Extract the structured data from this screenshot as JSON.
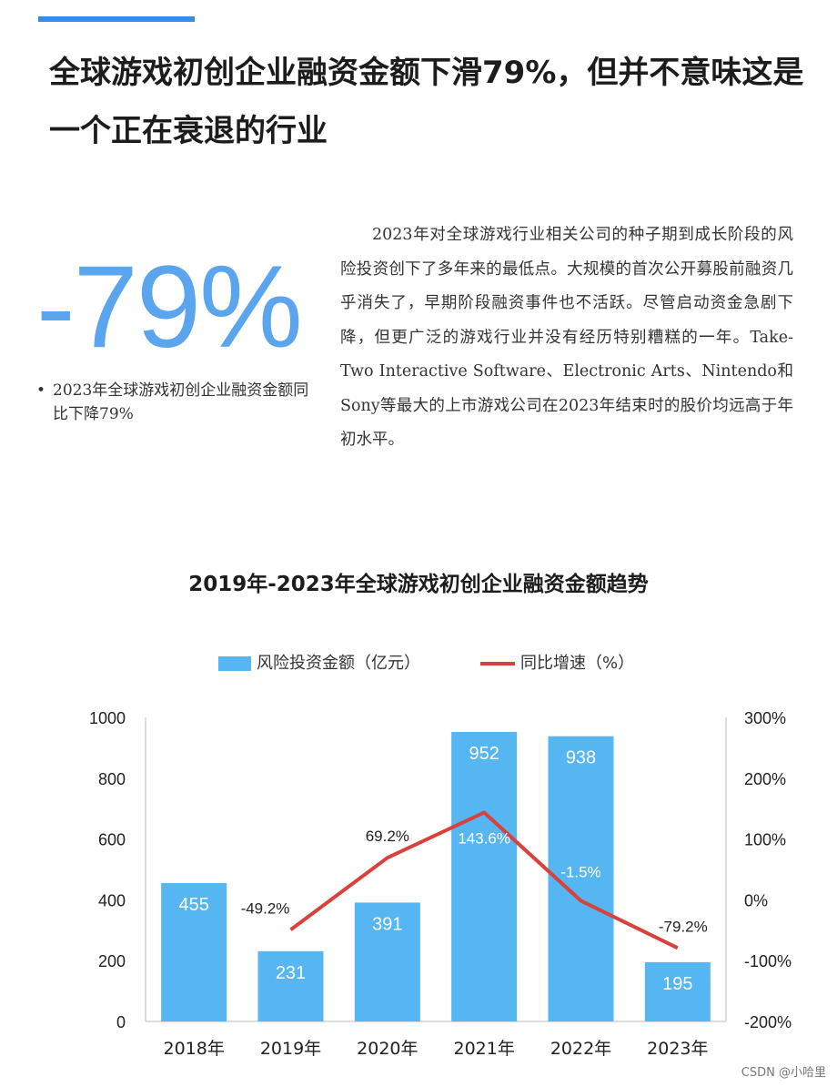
{
  "header": {
    "headline": "全球游戏初创企业融资金额下滑79%，但并不意味这是一个正在衰退的行业"
  },
  "stat": {
    "value": "-79%",
    "bullet": "•",
    "note": "2023年全球游戏初创企业融资金额同比下降79%"
  },
  "body": {
    "paragraph": "2023年对全球游戏行业相关公司的种子期到成长阶段的风险投资创下了多年来的最低点。大规模的首次公开募股前融资几乎消失了，早期阶段融资事件也不活跃。尽管启动资金急剧下降，但更广泛的游戏行业并没有经历特别糟糕的一年。Take-Two Interactive Software、Electronic Arts、Nintendo和Sony等最大的上市游戏公司在2023年结束时的股价均远高于年初水平。"
  },
  "colors": {
    "accent": "#3b8be8",
    "big_number": "#5aa5ee",
    "bar": "#55b6f1",
    "line": "#d9413c"
  },
  "chart_data": {
    "type": "bar",
    "title": "2019年-2023年全球游戏初创企业融资金额趋势",
    "categories": [
      "2018年",
      "2019年",
      "2020年",
      "2021年",
      "2022年",
      "2023年"
    ],
    "series": [
      {
        "name": "风险投资金额（亿元）",
        "type": "bar",
        "axis": "left",
        "values": [
          455,
          231,
          391,
          952,
          938,
          195
        ],
        "labels": [
          "455",
          "231",
          "391",
          "952",
          "938",
          "195"
        ]
      },
      {
        "name": "同比增速（%）",
        "type": "line",
        "axis": "right",
        "values": [
          null,
          -49.2,
          69.2,
          143.6,
          -1.5,
          -79.2
        ],
        "labels": [
          "",
          "-49.2%",
          "69.2%",
          "143.6%",
          "-1.5%",
          "-79.2%"
        ]
      }
    ],
    "y_left": {
      "min": 0,
      "max": 1000,
      "ticks": [
        "0",
        "200",
        "400",
        "600",
        "800",
        "1000"
      ]
    },
    "y_right": {
      "min": -200,
      "max": 300,
      "ticks": [
        "-200%",
        "-100%",
        "0%",
        "100%",
        "200%",
        "300%"
      ]
    },
    "legend_position": "top-center",
    "grid": false
  },
  "watermark": "CSDN @小哈里"
}
